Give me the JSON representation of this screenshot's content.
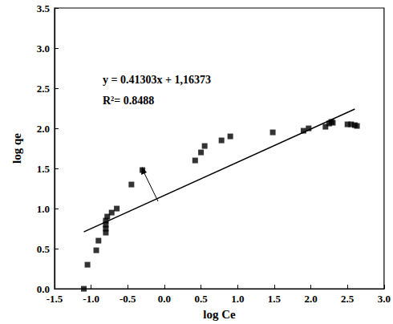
{
  "chart_data": {
    "type": "scatter",
    "x_label": "log Ce",
    "y_label": "log qe",
    "annotations": [
      "y = 0.41303x + 1,16373",
      "R²= 0.8488"
    ],
    "xlim": [
      -1.5,
      3.0
    ],
    "xticks": [
      -1.5,
      {
        "value": -1,
        "label": "-1.0"
      },
      -0.5,
      {
        "value": 0,
        "label": "0.0"
      },
      0.5,
      {
        "value": 1,
        "label": "1.0"
      },
      1.5,
      {
        "value": 2,
        "label": "2.0"
      },
      2.5,
      {
        "value": 3,
        "label": "3.0"
      }
    ],
    "ylim": [
      0,
      3.5
    ],
    "yticks": [
      {
        "value": 0,
        "label": "0.0"
      },
      0.5,
      {
        "value": 1,
        "label": "1.0"
      },
      1.5,
      {
        "value": 2,
        "label": "2.0"
      },
      2.5,
      {
        "value": 3,
        "label": "3.0"
      },
      3.5
    ],
    "grid": false,
    "series": [
      {
        "type": "scatter",
        "marker": "square",
        "color": "#000000",
        "x": [
          -1.1,
          -1.05,
          -0.93,
          -0.9,
          -0.8,
          -0.8,
          -0.8,
          -0.8,
          -0.78,
          -0.72,
          -0.65,
          -0.45,
          -0.3,
          0.42,
          0.5,
          0.55,
          0.78,
          0.9,
          1.48,
          1.9,
          1.97,
          2.2,
          2.25,
          2.28,
          2.3,
          2.5,
          2.55,
          2.6,
          2.63
        ],
        "values": [
          0.0,
          0.3,
          0.48,
          0.6,
          0.7,
          0.75,
          0.8,
          0.85,
          0.9,
          0.95,
          1.0,
          1.3,
          1.48,
          1.6,
          1.7,
          1.78,
          1.85,
          1.9,
          1.95,
          1.97,
          2.0,
          2.02,
          2.06,
          2.08,
          2.07,
          2.05,
          2.05,
          2.04,
          2.03
        ]
      },
      {
        "type": "line",
        "color": "#000000",
        "line_style": "solid",
        "x": [
          -1.1,
          2.6
        ],
        "values": [
          0.71,
          2.24
        ]
      }
    ]
  }
}
